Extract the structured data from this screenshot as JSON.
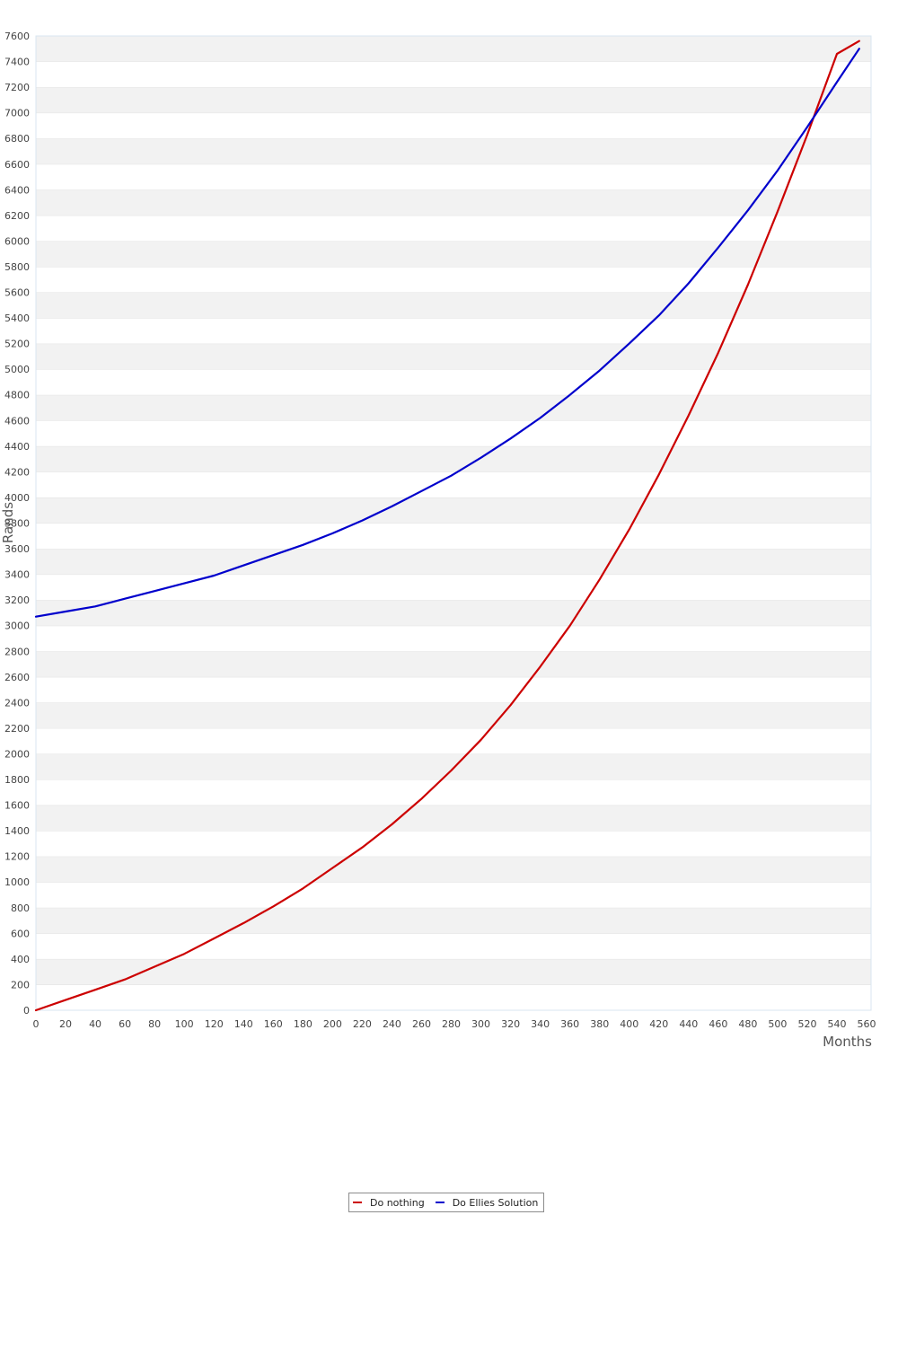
{
  "chart_data": {
    "type": "line",
    "title": "",
    "xlabel": "Months",
    "ylabel": "Rands",
    "xlim": [
      0,
      560
    ],
    "ylim": [
      0,
      7600
    ],
    "x_ticks": [
      0,
      20,
      40,
      60,
      80,
      100,
      120,
      140,
      160,
      180,
      200,
      220,
      240,
      260,
      280,
      300,
      320,
      340,
      360,
      380,
      400,
      420,
      440,
      460,
      480,
      500,
      520,
      540,
      560
    ],
    "y_ticks": [
      0,
      200,
      400,
      600,
      800,
      1000,
      1200,
      1400,
      1600,
      1800,
      2000,
      2200,
      2400,
      2600,
      2800,
      3000,
      3200,
      3400,
      3600,
      3800,
      4000,
      4200,
      4400,
      4600,
      4800,
      5000,
      5200,
      5400,
      5600,
      5800,
      6000,
      6200,
      6400,
      6600,
      6800,
      7000,
      7200,
      7400,
      7600
    ],
    "grid": "horizontal alternating bands",
    "legend_position": "bottom",
    "series": [
      {
        "name": "Do nothing",
        "color": "#cc0000",
        "x": [
          0,
          20,
          40,
          60,
          80,
          100,
          120,
          140,
          160,
          180,
          200,
          220,
          240,
          260,
          280,
          300,
          320,
          340,
          360,
          380,
          400,
          420,
          440,
          460,
          480,
          500,
          520,
          540,
          555
        ],
        "y": [
          0,
          80,
          160,
          240,
          340,
          440,
          560,
          680,
          810,
          950,
          1110,
          1270,
          1450,
          1650,
          1870,
          2110,
          2380,
          2680,
          3000,
          3360,
          3750,
          4180,
          4640,
          5130,
          5660,
          6230,
          6830,
          7460,
          7560
        ]
      },
      {
        "name": "Do Ellies Solution",
        "color": "#0000cc",
        "x": [
          0,
          20,
          40,
          60,
          80,
          100,
          120,
          140,
          160,
          180,
          200,
          220,
          240,
          260,
          280,
          300,
          320,
          340,
          360,
          380,
          400,
          420,
          440,
          460,
          480,
          500,
          520,
          540,
          555
        ],
        "y": [
          3070,
          3110,
          3150,
          3210,
          3270,
          3330,
          3390,
          3470,
          3550,
          3630,
          3720,
          3820,
          3930,
          4050,
          4170,
          4310,
          4460,
          4620,
          4800,
          4990,
          5200,
          5420,
          5670,
          5950,
          6240,
          6550,
          6890,
          7240,
          7500
        ]
      }
    ]
  }
}
